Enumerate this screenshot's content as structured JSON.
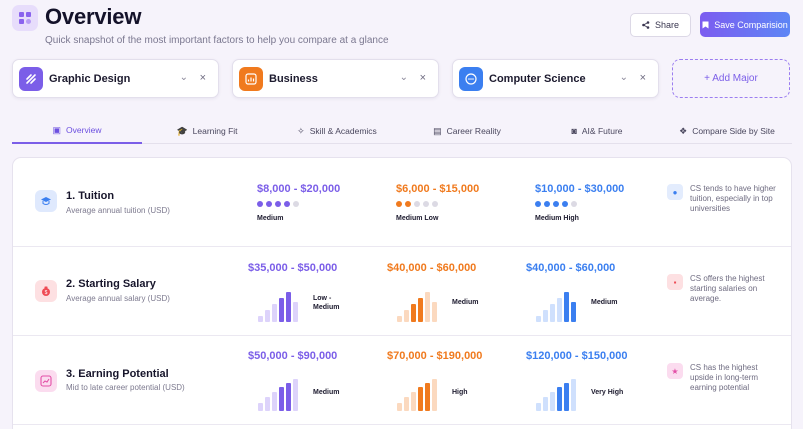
{
  "header": {
    "title": "Overview",
    "subtitle": "Quick snapshot of the most important factors to help you compare at a glance",
    "share_label": "Share",
    "save_label": "Save Comparision"
  },
  "majors": [
    {
      "label": "Graphic Design",
      "color": "#7b5ee8",
      "icon": "design-icon"
    },
    {
      "label": "Business",
      "color": "#f07a1e",
      "icon": "chart-icon"
    },
    {
      "label": "Computer Science",
      "color": "#3b7ff0",
      "icon": "code-icon"
    }
  ],
  "add_major_label": "+ Add Major",
  "tabs": [
    {
      "label": "Overview",
      "icon": "overview-icon",
      "active": true
    },
    {
      "label": "Learning Fit",
      "icon": "graduation-cap-icon"
    },
    {
      "label": "Skill & Academics",
      "icon": "magic-wand-icon"
    },
    {
      "label": "Career Reality",
      "icon": "briefcase-icon"
    },
    {
      "label": "AI& Future",
      "icon": "robot-icon"
    },
    {
      "label": "Compare Side by Site",
      "icon": "compare-icon"
    }
  ],
  "rows": [
    {
      "title": "1. Tuition",
      "subtitle": "Average annual tuition (USD)",
      "icon": "graduation-cap-icon",
      "values": [
        {
          "range": "$8,000 - $20,000",
          "level": "Medium",
          "score": 4,
          "max": 5
        },
        {
          "range": "$6,000 - $15,000",
          "level": "Medium Low",
          "score": 2,
          "max": 5
        },
        {
          "range": "$10,000 - $30,000",
          "level": "Medium High",
          "score": 4,
          "max": 5
        }
      ],
      "note": "CS tends to have higher tuition, especially in top universities",
      "note_icon": "info-icon"
    },
    {
      "title": "2. Starting Salary",
      "subtitle": "Average annual salary (USD)",
      "icon": "money-bag-icon",
      "values": [
        {
          "range": "$35,000 - $50,000",
          "level": "Low - Medium",
          "highlight": 4
        },
        {
          "range": "$40,000 - $60,000",
          "level": "Medium",
          "highlight": 3
        },
        {
          "range": "$40,000 - $60,000",
          "level": "Medium",
          "highlight": 5
        }
      ],
      "note": "CS offers the highest starting salaries on average.",
      "note_icon": "money-icon"
    },
    {
      "title": "3. Earning Potential",
      "subtitle": "Mid to late career potential (USD)",
      "icon": "growth-chart-icon",
      "values": [
        {
          "range": "$50,000 - $90,000",
          "level": "Medium",
          "highlight": 4
        },
        {
          "range": "$70,000 - $190,000",
          "level": "High",
          "highlight": 4
        },
        {
          "range": "$120,000 - $150,000",
          "level": "Very High",
          "highlight": 4
        }
      ],
      "note": "CS has the highest upside in long-term earning potential",
      "note_icon": "star-icon"
    }
  ],
  "colors": {
    "purple": "#7b5ee8",
    "orange": "#f07a1e",
    "blue": "#3b7ff0"
  }
}
